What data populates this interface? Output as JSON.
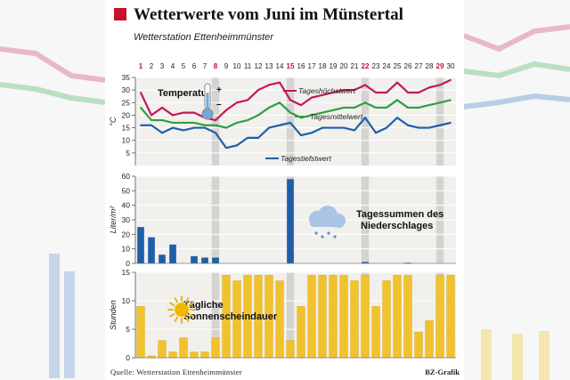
{
  "title": "Wetterwerte vom Juni im Münstertal",
  "subtitle": "Wetterstation Ettenheimmünster",
  "source": "Quelle: Wetterstation Ettenheimmünster",
  "credit": "BZ-Grafik",
  "colors": {
    "max": "#c2185b",
    "mean": "#2e9e44",
    "min": "#1f5fa8",
    "rain": "#1f5fa8",
    "sun": "#f2c12e",
    "highlight": "#c8102e",
    "panel": "#f1f0ec",
    "weekend": "#c9c9c9"
  },
  "chart_data": [
    {
      "type": "line",
      "title": "Temperatur",
      "ylabel": "°C",
      "ylim": [
        0,
        35
      ],
      "yticks": [
        5,
        10,
        15,
        20,
        25,
        30,
        35
      ],
      "x": [
        1,
        2,
        3,
        4,
        5,
        6,
        7,
        8,
        9,
        10,
        11,
        12,
        13,
        14,
        15,
        16,
        17,
        18,
        19,
        20,
        21,
        22,
        23,
        24,
        25,
        26,
        27,
        28,
        29,
        30
      ],
      "highlight_days": [
        1,
        8,
        15,
        22,
        29
      ],
      "weekend_days": [
        8,
        15,
        22,
        29
      ],
      "series": [
        {
          "name": "Tageshöchstwert",
          "values": [
            29,
            20,
            23,
            20,
            21,
            21,
            19,
            18,
            22,
            25,
            26,
            30,
            32,
            33,
            26,
            24,
            27,
            28,
            29,
            30,
            30,
            32,
            29,
            29,
            33,
            29,
            29,
            31,
            32,
            34
          ]
        },
        {
          "name": "Tagesmittelwert",
          "values": [
            23,
            18,
            18,
            17,
            17,
            17,
            16,
            16,
            15,
            17,
            18,
            20,
            23,
            25,
            21,
            19,
            20,
            21,
            22,
            23,
            23,
            25,
            23,
            23,
            26,
            23,
            23,
            24,
            25,
            26
          ]
        },
        {
          "name": "Tagestiefstwert",
          "values": [
            16,
            16,
            13,
            15,
            14,
            15,
            15,
            13,
            7,
            8,
            11,
            11,
            15,
            16,
            17,
            12,
            13,
            15,
            15,
            15,
            14,
            19,
            13,
            15,
            19,
            16,
            15,
            15,
            16,
            17
          ]
        }
      ]
    },
    {
      "type": "bar",
      "title": "Tagessummen des Niederschlages",
      "ylabel": "Liter/m²",
      "ylim": [
        0,
        60
      ],
      "yticks": [
        0,
        10,
        20,
        30,
        40,
        50,
        60
      ],
      "x": [
        1,
        2,
        3,
        4,
        5,
        6,
        7,
        8,
        9,
        10,
        11,
        12,
        13,
        14,
        15,
        16,
        17,
        18,
        19,
        20,
        21,
        22,
        23,
        24,
        25,
        26,
        27,
        28,
        29,
        30
      ],
      "values": [
        25,
        18,
        6,
        13,
        0,
        5,
        4,
        4,
        0,
        0,
        0,
        0,
        0,
        0,
        58,
        0,
        0,
        0,
        0,
        0,
        0,
        1,
        0,
        0,
        0,
        0.5,
        0,
        0,
        0,
        0
      ]
    },
    {
      "type": "bar",
      "title": "Tägliche Sonnenscheindauer",
      "ylabel": "Stunden",
      "ylim": [
        0,
        15
      ],
      "yticks": [
        0,
        5,
        10,
        15
      ],
      "x": [
        1,
        2,
        3,
        4,
        5,
        6,
        7,
        8,
        9,
        10,
        11,
        12,
        13,
        14,
        15,
        16,
        17,
        18,
        19,
        20,
        21,
        22,
        23,
        24,
        25,
        26,
        27,
        28,
        29,
        30
      ],
      "values": [
        9,
        0.3,
        3,
        1,
        3.5,
        1,
        1,
        3.5,
        14.5,
        13.5,
        14.5,
        14.5,
        14.5,
        13.5,
        3,
        9,
        14.5,
        14.5,
        14.5,
        14.5,
        13.5,
        14.5,
        9,
        13.5,
        14.5,
        14.5,
        4.5,
        6.5,
        14.5,
        14.5
      ]
    }
  ]
}
